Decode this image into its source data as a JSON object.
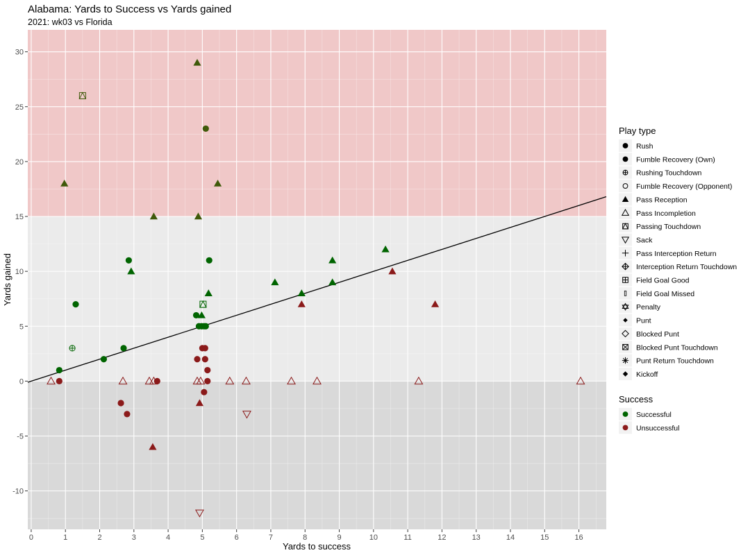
{
  "chart_data": {
    "type": "scatter",
    "title": "Alabama: Yards to Success vs Yards gained",
    "subtitle": "2021: wk03 vs Florida",
    "xlabel": "Yards to success",
    "ylabel": "Yards gained",
    "xlim": [
      -0.1,
      16.8
    ],
    "ylim": [
      -13.5,
      32
    ],
    "x_ticks": [
      "0",
      "1",
      "2",
      "3",
      "4",
      "5",
      "6",
      "7",
      "8",
      "9",
      "10",
      "11",
      "12",
      "13",
      "14",
      "15",
      "16"
    ],
    "y_ticks": [
      "-10",
      "-5",
      "0",
      "5",
      "10",
      "15",
      "20",
      "25",
      "30"
    ],
    "grid": true,
    "bands": [
      {
        "from": 15,
        "to": 32,
        "color": "#f0c8c8"
      },
      {
        "from": 0,
        "to": 15,
        "color": "#ebebeb"
      },
      {
        "from": -13.5,
        "to": 0,
        "color": "#d9d9d9"
      }
    ],
    "reference_line": {
      "x": [
        -0.1,
        16.8
      ],
      "y": [
        -0.1,
        16.8
      ]
    },
    "colors": {
      "Successful": "#006400",
      "Unsuccessful": "#8b1a1a",
      "Successful_high": "#3f5a0a"
    },
    "legend": {
      "position": "right",
      "play_type_title": "Play type",
      "play_types": [
        {
          "label": "Rush",
          "shape": "circle"
        },
        {
          "label": "Fumble Recovery (Own)",
          "shape": "circle"
        },
        {
          "label": "Rushing Touchdown",
          "shape": "circle-plus"
        },
        {
          "label": "Fumble Recovery (Opponent)",
          "shape": "circle-open"
        },
        {
          "label": "Pass Reception",
          "shape": "triangle"
        },
        {
          "label": "Pass Incompletion",
          "shape": "triangle-open"
        },
        {
          "label": "Passing Touchdown",
          "shape": "square-triangle"
        },
        {
          "label": "Sack",
          "shape": "triangle-down-open"
        },
        {
          "label": "Pass Interception Return",
          "shape": "plus"
        },
        {
          "label": "Interception Return Touchdown",
          "shape": "diamond-plus"
        },
        {
          "label": "Field Goal Good",
          "shape": "square-plus"
        },
        {
          "label": "Field Goal Missed",
          "shape": "thin-rect"
        },
        {
          "label": "Penalty",
          "shape": "star-of-david"
        },
        {
          "label": "Punt",
          "shape": "diamond-small"
        },
        {
          "label": "Blocked Punt",
          "shape": "diamond-open"
        },
        {
          "label": "Blocked Punt Touchdown",
          "shape": "square-x"
        },
        {
          "label": "Punt Return Touchdown",
          "shape": "asterisk"
        },
        {
          "label": "Kickoff",
          "shape": "diamond"
        }
      ],
      "success_title": "Success",
      "success_items": [
        {
          "label": "Successful",
          "color": "#006400"
        },
        {
          "label": "Unsuccessful",
          "color": "#8b1a1a"
        }
      ]
    },
    "points": [
      {
        "x": 4.85,
        "y": 29,
        "shape": "triangle",
        "success": "Successful_high"
      },
      {
        "x": 1.5,
        "y": 26,
        "shape": "square-triangle",
        "success": "Successful_high"
      },
      {
        "x": 5.1,
        "y": 23,
        "shape": "circle",
        "success": "Successful_high"
      },
      {
        "x": 0.97,
        "y": 18,
        "shape": "triangle",
        "success": "Successful_high"
      },
      {
        "x": 5.45,
        "y": 18,
        "shape": "triangle",
        "success": "Successful_high"
      },
      {
        "x": 3.58,
        "y": 15,
        "shape": "triangle",
        "success": "Successful_high"
      },
      {
        "x": 4.88,
        "y": 15,
        "shape": "triangle",
        "success": "Successful_high"
      },
      {
        "x": 10.35,
        "y": 12,
        "shape": "triangle",
        "success": "Successful"
      },
      {
        "x": 2.85,
        "y": 11,
        "shape": "circle",
        "success": "Successful"
      },
      {
        "x": 5.2,
        "y": 11,
        "shape": "circle",
        "success": "Successful"
      },
      {
        "x": 8.8,
        "y": 11,
        "shape": "triangle",
        "success": "Successful"
      },
      {
        "x": 2.92,
        "y": 10,
        "shape": "triangle",
        "success": "Successful"
      },
      {
        "x": 7.12,
        "y": 9,
        "shape": "triangle",
        "success": "Successful"
      },
      {
        "x": 8.8,
        "y": 9,
        "shape": "triangle",
        "success": "Successful"
      },
      {
        "x": 5.18,
        "y": 8,
        "shape": "triangle",
        "success": "Successful"
      },
      {
        "x": 7.9,
        "y": 8,
        "shape": "triangle",
        "success": "Successful"
      },
      {
        "x": 1.3,
        "y": 7,
        "shape": "circle",
        "success": "Successful"
      },
      {
        "x": 5.02,
        "y": 7,
        "shape": "square-triangle",
        "success": "Successful"
      },
      {
        "x": 4.82,
        "y": 6,
        "shape": "circle",
        "success": "Successful"
      },
      {
        "x": 4.98,
        "y": 6,
        "shape": "triangle",
        "success": "Successful"
      },
      {
        "x": 4.9,
        "y": 5,
        "shape": "circle",
        "success": "Successful"
      },
      {
        "x": 4.98,
        "y": 5,
        "shape": "circle",
        "success": "Successful"
      },
      {
        "x": 5.05,
        "y": 5,
        "shape": "circle",
        "success": "Successful"
      },
      {
        "x": 5.1,
        "y": 5,
        "shape": "circle",
        "success": "Successful"
      },
      {
        "x": 1.2,
        "y": 3,
        "shape": "circle-plus",
        "success": "Successful"
      },
      {
        "x": 2.7,
        "y": 3,
        "shape": "circle",
        "success": "Successful"
      },
      {
        "x": 2.12,
        "y": 2,
        "shape": "circle",
        "success": "Successful"
      },
      {
        "x": 0.82,
        "y": 1,
        "shape": "circle",
        "success": "Successful"
      },
      {
        "x": 10.55,
        "y": 10,
        "shape": "triangle",
        "success": "Unsuccessful"
      },
      {
        "x": 7.9,
        "y": 7,
        "shape": "triangle",
        "success": "Unsuccessful"
      },
      {
        "x": 11.8,
        "y": 7,
        "shape": "triangle",
        "success": "Unsuccessful"
      },
      {
        "x": 5.0,
        "y": 3,
        "shape": "circle",
        "success": "Unsuccessful"
      },
      {
        "x": 5.08,
        "y": 3,
        "shape": "circle",
        "success": "Unsuccessful"
      },
      {
        "x": 4.85,
        "y": 2,
        "shape": "circle",
        "success": "Unsuccessful"
      },
      {
        "x": 5.08,
        "y": 2,
        "shape": "circle",
        "success": "Unsuccessful"
      },
      {
        "x": 5.15,
        "y": 1,
        "shape": "circle",
        "success": "Unsuccessful"
      },
      {
        "x": 0.82,
        "y": 0,
        "shape": "circle",
        "success": "Unsuccessful"
      },
      {
        "x": 3.68,
        "y": 0,
        "shape": "circle",
        "success": "Unsuccessful"
      },
      {
        "x": 5.15,
        "y": 0,
        "shape": "circle",
        "success": "Unsuccessful"
      },
      {
        "x": 0.58,
        "y": 0,
        "shape": "triangle-open",
        "success": "Unsuccessful"
      },
      {
        "x": 2.68,
        "y": 0,
        "shape": "triangle-open",
        "success": "Unsuccessful"
      },
      {
        "x": 3.45,
        "y": 0,
        "shape": "triangle-open",
        "success": "Unsuccessful"
      },
      {
        "x": 3.58,
        "y": 0,
        "shape": "triangle-open",
        "success": "Unsuccessful"
      },
      {
        "x": 4.85,
        "y": 0,
        "shape": "triangle-open",
        "success": "Unsuccessful"
      },
      {
        "x": 4.95,
        "y": 0,
        "shape": "triangle-open",
        "success": "Unsuccessful"
      },
      {
        "x": 5.8,
        "y": 0,
        "shape": "triangle-open",
        "success": "Unsuccessful"
      },
      {
        "x": 6.28,
        "y": 0,
        "shape": "triangle-open",
        "success": "Unsuccessful"
      },
      {
        "x": 7.6,
        "y": 0,
        "shape": "triangle-open",
        "success": "Unsuccessful"
      },
      {
        "x": 8.35,
        "y": 0,
        "shape": "triangle-open",
        "success": "Unsuccessful"
      },
      {
        "x": 11.32,
        "y": 0,
        "shape": "triangle-open",
        "success": "Unsuccessful"
      },
      {
        "x": 16.05,
        "y": 0,
        "shape": "triangle-open",
        "success": "Unsuccessful"
      },
      {
        "x": 5.05,
        "y": -1,
        "shape": "circle",
        "success": "Unsuccessful"
      },
      {
        "x": 2.62,
        "y": -2,
        "shape": "circle",
        "success": "Unsuccessful"
      },
      {
        "x": 4.92,
        "y": -2,
        "shape": "triangle",
        "success": "Unsuccessful"
      },
      {
        "x": 2.8,
        "y": -3,
        "shape": "circle",
        "success": "Unsuccessful"
      },
      {
        "x": 6.3,
        "y": -3,
        "shape": "triangle-down-open",
        "success": "Unsuccessful"
      },
      {
        "x": 3.55,
        "y": -6,
        "shape": "triangle",
        "success": "Unsuccessful"
      },
      {
        "x": 4.92,
        "y": -12,
        "shape": "triangle-down-open",
        "success": "Unsuccessful"
      }
    ]
  }
}
